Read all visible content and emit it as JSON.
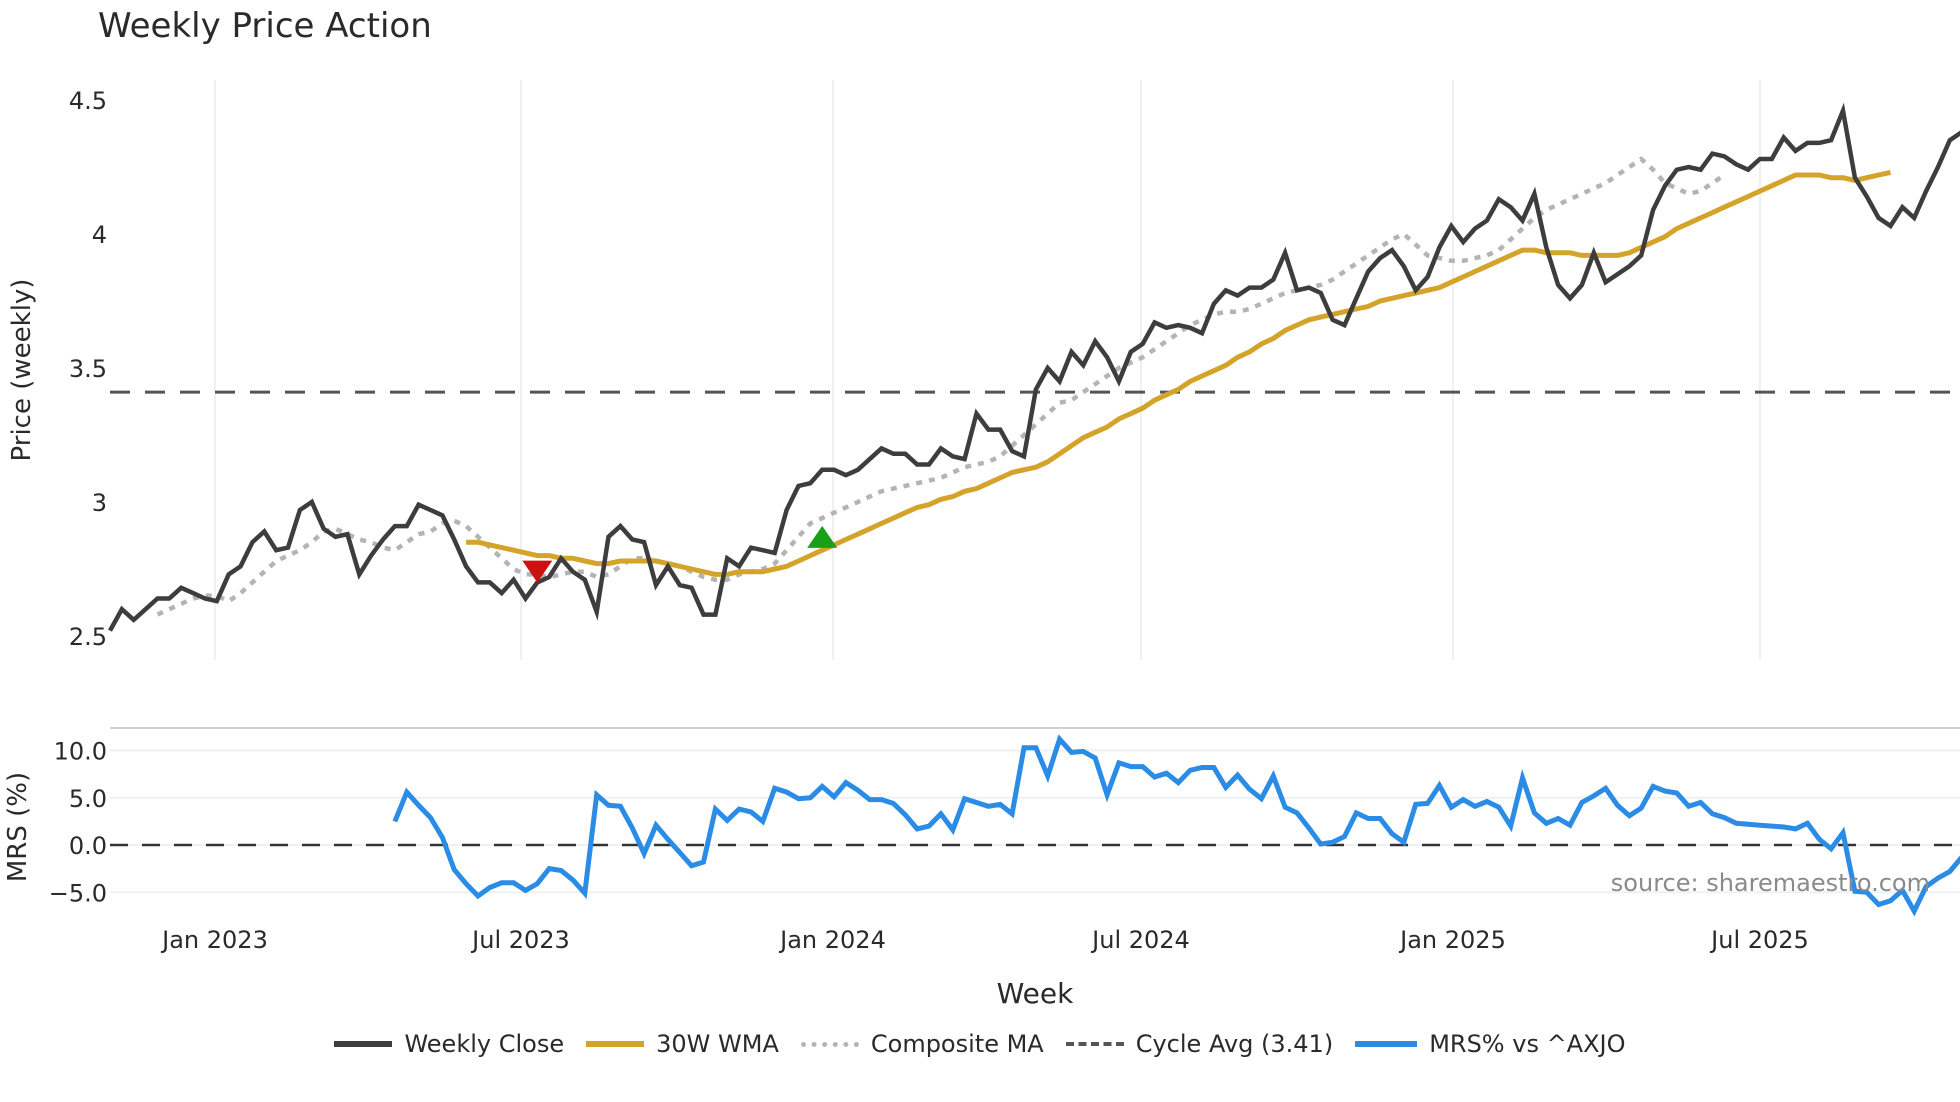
{
  "header": {
    "title": "Weekly Price Action"
  },
  "source_note": "source: sharemaestro.com",
  "legend": [
    {
      "key": "close",
      "label": "Weekly Close"
    },
    {
      "key": "wma",
      "label": "30W WMA"
    },
    {
      "key": "comp",
      "label": "Composite MA"
    },
    {
      "key": "cycle",
      "label": "Cycle Avg (3.41)"
    },
    {
      "key": "mrs",
      "label": "MRS% vs ^AXJO"
    }
  ],
  "colors": {
    "close": "#3d3d3d",
    "wma": "#d4a32a",
    "composite": "#b4b4b4",
    "cycle": "#555555",
    "mrs": "#2b8ce6",
    "sell_marker": "#cc1111",
    "buy_marker": "#18a018",
    "grid": "#eef0f3"
  },
  "chart_data": [
    {
      "type": "line",
      "title": "Weekly Price Action",
      "xlabel": "Week",
      "ylabel": "Price (weekly)",
      "ylim": [
        2.47,
        4.55
      ],
      "yticks": [
        2.5,
        3,
        3.5,
        4,
        4.5
      ],
      "ytick_labels": [
        "2.5",
        "3",
        "3.5",
        "4",
        "4.5"
      ],
      "xtick_labels": [
        "Jan 2023",
        "Jul 2023",
        "Jan 2024",
        "Jul 2024",
        "Jan 2025",
        "Jul 2025"
      ],
      "grid": true,
      "x_start_index": 0,
      "cycle_avg": 3.41,
      "series": [
        {
          "name": "Weekly Close",
          "start_index": 0,
          "values": [
            2.52,
            2.6,
            2.56,
            2.6,
            2.64,
            2.64,
            2.68,
            2.66,
            2.64,
            2.63,
            2.73,
            2.76,
            2.85,
            2.89,
            2.82,
            2.83,
            2.97,
            3.0,
            2.9,
            2.87,
            2.88,
            2.73,
            2.8,
            2.86,
            2.91,
            2.91,
            2.99,
            2.97,
            2.95,
            2.86,
            2.76,
            2.7,
            2.7,
            2.66,
            2.71,
            2.64,
            2.7,
            2.72,
            2.79,
            2.74,
            2.71,
            2.59,
            2.87,
            2.91,
            2.86,
            2.85,
            2.69,
            2.76,
            2.69,
            2.68,
            2.58,
            2.58,
            2.79,
            2.76,
            2.83,
            2.82,
            2.81,
            2.97,
            3.06,
            3.07,
            3.12,
            3.12,
            3.1,
            3.12,
            3.16,
            3.2,
            3.18,
            3.18,
            3.14,
            3.14,
            3.2,
            3.17,
            3.16,
            3.33,
            3.27,
            3.27,
            3.19,
            3.17,
            3.42,
            3.5,
            3.45,
            3.56,
            3.51,
            3.6,
            3.54,
            3.45,
            3.56,
            3.59,
            3.67,
            3.65,
            3.66,
            3.65,
            3.63,
            3.74,
            3.79,
            3.77,
            3.8,
            3.8,
            3.83,
            3.93,
            3.79,
            3.8,
            3.78,
            3.68,
            3.66,
            3.76,
            3.86,
            3.91,
            3.94,
            3.88,
            3.79,
            3.84,
            3.95,
            4.03,
            3.97,
            4.02,
            4.05,
            4.13,
            4.1,
            4.05,
            4.15,
            3.95,
            3.81,
            3.76,
            3.81,
            3.93,
            3.82,
            3.85,
            3.88,
            3.92,
            4.09,
            4.18,
            4.24,
            4.25,
            4.24,
            4.3,
            4.29,
            4.26,
            4.24,
            4.28,
            4.28,
            4.36,
            4.31,
            4.34,
            4.34,
            4.35,
            4.46,
            4.21,
            4.14,
            4.06,
            4.03,
            4.1,
            4.06,
            4.16,
            4.25,
            4.35,
            4.38
          ]
        },
        {
          "name": "30W WMA",
          "start_index": 30,
          "values": [
            2.85,
            2.85,
            2.84,
            2.83,
            2.82,
            2.81,
            2.8,
            2.8,
            2.79,
            2.79,
            2.78,
            2.77,
            2.77,
            2.78,
            2.78,
            2.78,
            2.78,
            2.77,
            2.76,
            2.75,
            2.74,
            2.73,
            2.73,
            2.74,
            2.74,
            2.74,
            2.75,
            2.76,
            2.78,
            2.8,
            2.82,
            2.84,
            2.86,
            2.88,
            2.9,
            2.92,
            2.94,
            2.96,
            2.98,
            2.99,
            3.01,
            3.02,
            3.04,
            3.05,
            3.07,
            3.09,
            3.11,
            3.12,
            3.13,
            3.15,
            3.18,
            3.21,
            3.24,
            3.26,
            3.28,
            3.31,
            3.33,
            3.35,
            3.38,
            3.4,
            3.42,
            3.45,
            3.47,
            3.49,
            3.51,
            3.54,
            3.56,
            3.59,
            3.61,
            3.64,
            3.66,
            3.68,
            3.69,
            3.7,
            3.71,
            3.72,
            3.73,
            3.75,
            3.76,
            3.77,
            3.78,
            3.79,
            3.8,
            3.82,
            3.84,
            3.86,
            3.88,
            3.9,
            3.92,
            3.94,
            3.94,
            3.93,
            3.93,
            3.93,
            3.92,
            3.92,
            3.92,
            3.92,
            3.93,
            3.95,
            3.97,
            3.99,
            4.02,
            4.04,
            4.06,
            4.08,
            4.1,
            4.12,
            4.14,
            4.16,
            4.18,
            4.2,
            4.22,
            4.22,
            4.22,
            4.21,
            4.21,
            4.2,
            4.21,
            4.22,
            4.23
          ]
        },
        {
          "name": "Composite MA",
          "start_index": 4,
          "values": [
            2.58,
            2.6,
            2.62,
            2.64,
            2.65,
            2.65,
            2.63,
            2.66,
            2.7,
            2.74,
            2.78,
            2.8,
            2.82,
            2.85,
            2.89,
            2.9,
            2.88,
            2.86,
            2.85,
            2.83,
            2.82,
            2.85,
            2.88,
            2.89,
            2.92,
            2.93,
            2.91,
            2.87,
            2.83,
            2.79,
            2.75,
            2.73,
            2.73,
            2.72,
            2.73,
            2.74,
            2.74,
            2.72,
            2.73,
            2.76,
            2.79,
            2.79,
            2.78,
            2.77,
            2.76,
            2.74,
            2.72,
            2.71,
            2.71,
            2.73,
            2.74,
            2.75,
            2.77,
            2.82,
            2.87,
            2.92,
            2.94,
            2.96,
            2.98,
            3.0,
            3.02,
            3.04,
            3.05,
            3.06,
            3.07,
            3.08,
            3.09,
            3.11,
            3.13,
            3.14,
            3.15,
            3.17,
            3.21,
            3.25,
            3.29,
            3.33,
            3.37,
            3.38,
            3.41,
            3.44,
            3.47,
            3.5,
            3.52,
            3.54,
            3.57,
            3.6,
            3.63,
            3.66,
            3.68,
            3.7,
            3.71,
            3.71,
            3.72,
            3.74,
            3.76,
            3.78,
            3.79,
            3.8,
            3.81,
            3.83,
            3.86,
            3.89,
            3.92,
            3.95,
            3.98,
            4.0,
            3.96,
            3.92,
            3.91,
            3.9,
            3.9,
            3.91,
            3.92,
            3.94,
            3.98,
            4.02,
            4.06,
            4.09,
            4.11,
            4.13,
            4.15,
            4.17,
            4.19,
            4.22,
            4.25,
            4.28,
            4.24,
            4.19,
            4.17,
            4.15,
            4.16,
            4.19,
            4.22
          ]
        }
      ],
      "annotations": [
        {
          "type": "sell-marker",
          "shape": "triangle-down",
          "index": 36,
          "price": 2.74
        },
        {
          "type": "buy-marker",
          "shape": "triangle-up",
          "index": 60,
          "price": 2.87
        }
      ]
    },
    {
      "type": "line",
      "title": "",
      "xlabel": "Week",
      "ylabel": "MRS (%)",
      "ylim": [
        -7.5,
        12.5
      ],
      "yticks": [
        10,
        5,
        0,
        -5
      ],
      "ytick_labels": [
        "10.0",
        "5.0",
        "0.0",
        "−5.0"
      ],
      "zero_line": 0,
      "series": [
        {
          "name": "MRS% vs ^AXJO",
          "start_index": 24,
          "values": [
            2.5,
            5.6,
            4.2,
            2.9,
            0.8,
            -2.6,
            -4.1,
            -5.4,
            -4.5,
            -4.0,
            -4.0,
            -4.8,
            -4.1,
            -2.5,
            -2.7,
            -3.7,
            -5.1,
            5.3,
            4.2,
            4.1,
            1.8,
            -0.9,
            2.1,
            0.6,
            -0.8,
            -2.2,
            -1.8,
            3.8,
            2.6,
            3.8,
            3.5,
            2.5,
            6.0,
            5.6,
            4.9,
            5.0,
            6.2,
            5.1,
            6.6,
            5.8,
            4.8,
            4.8,
            4.4,
            3.2,
            1.7,
            2.0,
            3.3,
            1.6,
            4.9,
            4.5,
            4.1,
            4.3,
            3.3,
            10.3,
            10.3,
            7.3,
            11.2,
            9.8,
            9.9,
            9.2,
            5.3,
            8.7,
            8.3,
            8.3,
            7.2,
            7.6,
            6.6,
            7.9,
            8.2,
            8.2,
            6.1,
            7.4,
            5.9,
            4.9,
            7.3,
            4.0,
            3.4,
            1.8,
            0.1,
            0.3,
            0.9,
            3.4,
            2.8,
            2.8,
            1.2,
            0.3,
            4.3,
            4.4,
            6.3,
            4.0,
            4.8,
            4.1,
            4.6,
            4.0,
            2.0,
            7.1,
            3.4,
            2.3,
            2.8,
            2.1,
            4.5,
            5.2,
            6.0,
            4.2,
            3.1,
            3.9,
            6.2,
            5.7,
            5.5,
            4.1,
            4.5,
            3.3,
            2.9,
            2.3,
            2.2,
            2.1,
            2.0,
            1.9,
            1.7,
            2.3,
            0.6,
            -0.4,
            1.3,
            -4.9,
            -5.0,
            -6.3,
            -5.9,
            -4.8,
            -7.0,
            -4.4,
            -3.5,
            -2.8,
            -1.3,
            0.1
          ]
        }
      ]
    }
  ]
}
